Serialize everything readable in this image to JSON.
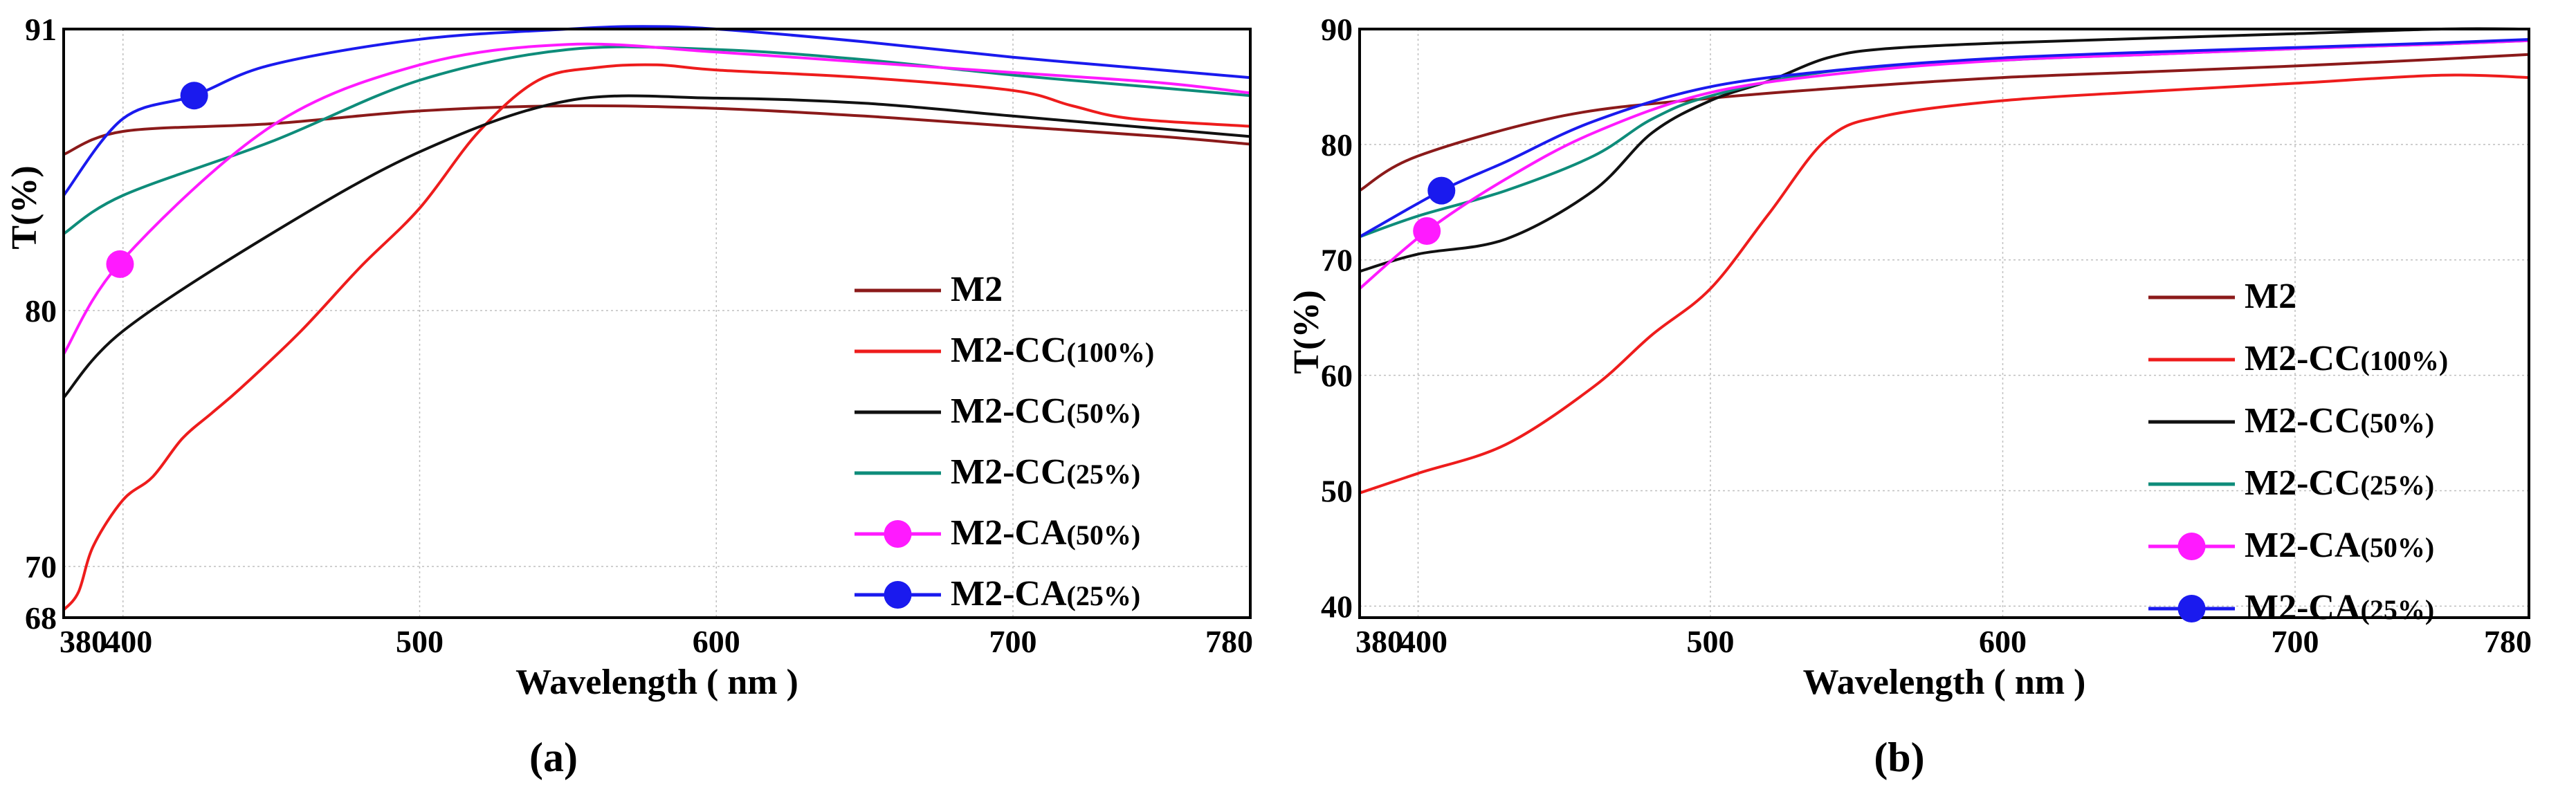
{
  "chart_data": [
    {
      "type": "line",
      "caption": "(a)",
      "xlabel": "Wavelength ( nm )",
      "ylabel": "T(%)",
      "xlim": [
        380,
        780
      ],
      "ylim": [
        68,
        91
      ],
      "xticks": [
        380,
        400,
        500,
        600,
        700,
        780
      ],
      "yticks": [
        68,
        70,
        80,
        91
      ],
      "legend_position": "bottom-right",
      "series": [
        {
          "name": "M2",
          "label_main": "M2",
          "label_sub": "",
          "color": "#8B1A1A",
          "marker": false,
          "x": [
            380,
            400,
            450,
            500,
            550,
            600,
            650,
            700,
            750,
            780
          ],
          "y": [
            86.1,
            87.0,
            87.3,
            87.8,
            88.0,
            87.9,
            87.6,
            87.2,
            86.8,
            86.5
          ]
        },
        {
          "name": "M2-CC(100%)",
          "label_main": "M2-CC",
          "label_sub": "(100%)",
          "color": "#EE1C1C",
          "marker": false,
          "x": [
            380,
            385,
            390,
            400,
            410,
            420,
            430,
            440,
            460,
            480,
            500,
            520,
            540,
            560,
            580,
            600,
            650,
            700,
            720,
            740,
            780
          ],
          "y": [
            68.3,
            69.0,
            70.8,
            72.6,
            73.5,
            75.0,
            76.0,
            77.0,
            79.2,
            81.7,
            84.0,
            87.0,
            89.0,
            89.5,
            89.6,
            89.4,
            89.1,
            88.6,
            88.0,
            87.5,
            87.2
          ]
        },
        {
          "name": "M2-CC(50%)",
          "label_main": "M2-CC",
          "label_sub": "(50%)",
          "color": "#111111",
          "marker": false,
          "x": [
            380,
            400,
            450,
            500,
            550,
            600,
            650,
            700,
            750,
            780
          ],
          "y": [
            76.6,
            79.2,
            83.0,
            86.2,
            88.2,
            88.3,
            88.1,
            87.6,
            87.1,
            86.8
          ]
        },
        {
          "name": "M2-CC(25%)",
          "label_main": "M2-CC",
          "label_sub": "(25%)",
          "color": "#0E8C7A",
          "marker": false,
          "x": [
            380,
            400,
            450,
            500,
            550,
            600,
            650,
            700,
            750,
            780
          ],
          "y": [
            83.0,
            84.5,
            86.6,
            89.0,
            90.2,
            90.2,
            89.8,
            89.2,
            88.7,
            88.4
          ]
        },
        {
          "name": "M2-CA(50%)",
          "label_main": "M2-CA",
          "label_sub": "(50%)",
          "color": "#FF1AFF",
          "marker": true,
          "marker_x": 399,
          "x": [
            380,
            400,
            450,
            500,
            550,
            600,
            650,
            700,
            750,
            780
          ],
          "y": [
            78.3,
            82.0,
            87.2,
            89.6,
            90.4,
            90.1,
            89.7,
            89.3,
            88.9,
            88.5
          ]
        },
        {
          "name": "M2-CA(25%)",
          "label_main": "M2-CA",
          "label_sub": "(25%)",
          "color": "#1A1AEE",
          "marker": true,
          "marker_x": 424,
          "x": [
            380,
            400,
            424,
            450,
            500,
            550,
            575,
            600,
            650,
            700,
            750,
            780
          ],
          "y": [
            84.5,
            87.5,
            88.4,
            89.6,
            90.6,
            91.0,
            91.1,
            91.0,
            90.5,
            89.9,
            89.4,
            89.1
          ]
        }
      ]
    },
    {
      "type": "line",
      "caption": "(b)",
      "xlabel": "Wavelength ( nm )",
      "ylabel": "T(%)",
      "xlim": [
        380,
        780
      ],
      "ylim": [
        39,
        90
      ],
      "xticks": [
        380,
        400,
        500,
        600,
        700,
        780
      ],
      "yticks": [
        40,
        50,
        60,
        70,
        80,
        90
      ],
      "legend_position": "bottom-right",
      "series": [
        {
          "name": "M2",
          "label_main": "M2",
          "label_sub": "",
          "color": "#8B1A1A",
          "marker": false,
          "x": [
            380,
            400,
            450,
            500,
            550,
            600,
            650,
            700,
            750,
            780
          ],
          "y": [
            76.0,
            79.0,
            82.5,
            84.0,
            85.0,
            85.8,
            86.3,
            86.8,
            87.4,
            87.8
          ]
        },
        {
          "name": "M2-CC(100%)",
          "label_main": "M2-CC",
          "label_sub": "(100%)",
          "color": "#EE1C1C",
          "marker": false,
          "x": [
            380,
            400,
            430,
            460,
            480,
            500,
            520,
            540,
            560,
            600,
            650,
            700,
            750,
            780
          ],
          "y": [
            49.8,
            51.5,
            54.0,
            59.0,
            63.5,
            67.5,
            74.0,
            80.5,
            82.5,
            83.8,
            84.6,
            85.3,
            86.0,
            85.8
          ]
        },
        {
          "name": "M2-CC(50%)",
          "label_main": "M2-CC",
          "label_sub": "(50%)",
          "color": "#111111",
          "marker": false,
          "x": [
            380,
            400,
            430,
            460,
            480,
            500,
            520,
            540,
            560,
            600,
            650,
            700,
            750,
            780
          ],
          "y": [
            69.0,
            70.5,
            71.8,
            76.0,
            81.0,
            83.8,
            85.5,
            87.5,
            88.3,
            88.8,
            89.2,
            89.6,
            90.0,
            90.0
          ]
        },
        {
          "name": "M2-CC(25%)",
          "label_main": "M2-CC",
          "label_sub": "(25%)",
          "color": "#0E8C7A",
          "marker": false,
          "x": [
            380,
            400,
            430,
            460,
            480,
            500,
            540,
            600,
            650,
            700,
            750,
            780
          ],
          "y": [
            72.0,
            73.8,
            76.0,
            79.0,
            82.2,
            84.2,
            86.3,
            87.3,
            87.8,
            88.3,
            88.7,
            89.0
          ]
        },
        {
          "name": "M2-CA(50%)",
          "label_main": "M2-CA",
          "label_sub": "(50%)",
          "color": "#FF1AFF",
          "marker": true,
          "marker_x": 403,
          "x": [
            380,
            403,
            430,
            460,
            500,
            550,
            600,
            650,
            700,
            750,
            780
          ],
          "y": [
            67.5,
            72.5,
            77.0,
            81.0,
            84.5,
            86.3,
            87.3,
            87.8,
            88.3,
            88.7,
            89.0
          ]
        },
        {
          "name": "M2-CA(25%)",
          "label_main": "M2-CA",
          "label_sub": "(25%)",
          "color": "#1A1AEE",
          "marker": true,
          "marker_x": 408,
          "x": [
            380,
            408,
            430,
            460,
            500,
            550,
            600,
            650,
            700,
            750,
            780
          ],
          "y": [
            72.0,
            76.0,
            78.5,
            82.0,
            85.0,
            86.6,
            87.5,
            88.0,
            88.4,
            88.8,
            89.1
          ]
        }
      ]
    }
  ]
}
